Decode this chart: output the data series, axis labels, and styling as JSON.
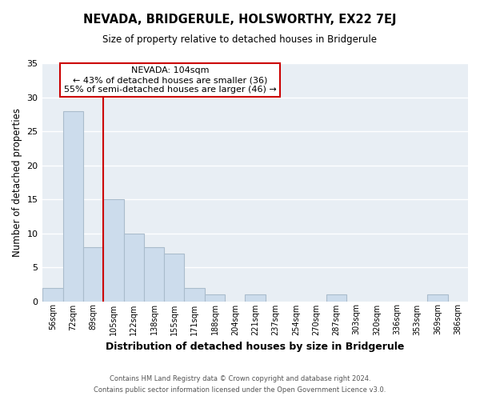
{
  "title": "NEVADA, BRIDGERULE, HOLSWORTHY, EX22 7EJ",
  "subtitle": "Size of property relative to detached houses in Bridgerule",
  "xlabel": "Distribution of detached houses by size in Bridgerule",
  "ylabel": "Number of detached properties",
  "bin_labels": [
    "56sqm",
    "72sqm",
    "89sqm",
    "105sqm",
    "122sqm",
    "138sqm",
    "155sqm",
    "171sqm",
    "188sqm",
    "204sqm",
    "221sqm",
    "237sqm",
    "254sqm",
    "270sqm",
    "287sqm",
    "303sqm",
    "320sqm",
    "336sqm",
    "353sqm",
    "369sqm",
    "386sqm"
  ],
  "bar_heights": [
    2,
    28,
    8,
    15,
    10,
    8,
    7,
    2,
    1,
    0,
    1,
    0,
    0,
    0,
    1,
    0,
    0,
    0,
    0,
    1,
    0
  ],
  "bar_color": "#ccdcec",
  "bar_edge_color": "#aabccc",
  "vline_color": "#cc0000",
  "ylim": [
    0,
    35
  ],
  "yticks": [
    0,
    5,
    10,
    15,
    20,
    25,
    30,
    35
  ],
  "annotation_title": "NEVADA: 104sqm",
  "annotation_line1": "← 43% of detached houses are smaller (36)",
  "annotation_line2": "55% of semi-detached houses are larger (46) →",
  "annotation_box_color": "#ffffff",
  "annotation_box_edge": "#cc0000",
  "footer_line1": "Contains HM Land Registry data © Crown copyright and database right 2024.",
  "footer_line2": "Contains public sector information licensed under the Open Government Licence v3.0.",
  "background_color": "#ffffff",
  "plot_bg_color": "#e8eef4",
  "grid_color": "#ffffff"
}
